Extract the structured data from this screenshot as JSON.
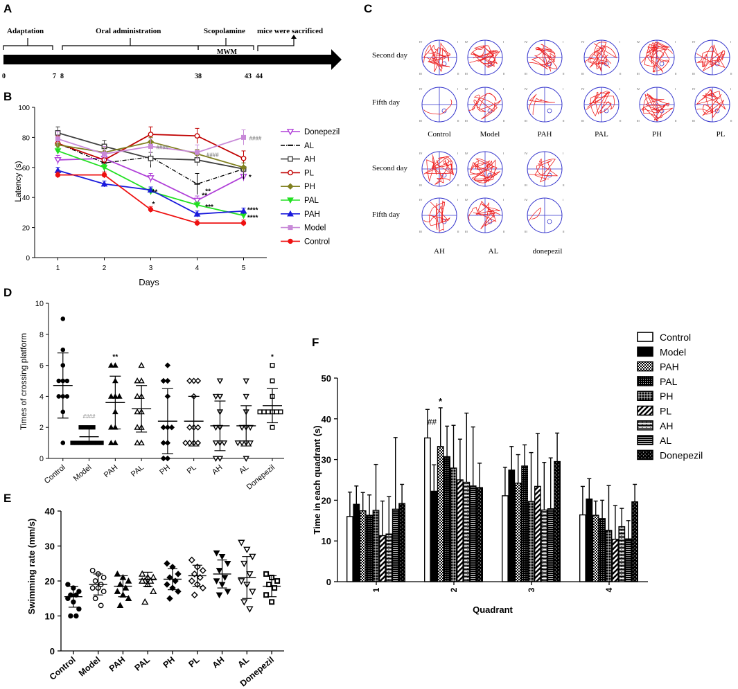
{
  "panel_letters": {
    "a": "A",
    "b": "B",
    "c": "C",
    "d": "D",
    "e": "E",
    "f": "F"
  },
  "colors": {
    "Donepezil": "#b040d8",
    "AL": "#000000",
    "AH": "#404040",
    "PL": "#c00000",
    "PH": "#808020",
    "PAL": "#22e022",
    "PAH": "#1a1adc",
    "Model": "#c88ad8",
    "Control": "#ee1111",
    "track_red": "#ee2222",
    "track_blue": "#3333cc"
  },
  "timeline": {
    "phases": [
      "Adaptation",
      "Oral administration",
      "Scopolamine",
      "MWM",
      "mice were sacrificed"
    ],
    "ticks": [
      "0",
      "7",
      "8",
      "38",
      "43",
      "44"
    ]
  },
  "chart_data": [
    {
      "panel": "B",
      "type": "line",
      "xlabel": "Days",
      "ylabel": "Latency (s)",
      "x": [
        1,
        2,
        3,
        4,
        5
      ],
      "xticks": [
        "1",
        "2",
        "3",
        "4",
        "5"
      ],
      "yticks": [
        "0",
        "20",
        "40",
        "60",
        "80",
        "100"
      ],
      "ylim": [
        0,
        100
      ],
      "legend_position": "right",
      "series": [
        {
          "name": "Donepezil",
          "values": [
            65,
            66,
            53,
            38,
            54
          ],
          "marker": "triangle-down-open"
        },
        {
          "name": "AL",
          "values": [
            76,
            63,
            67,
            49,
            59
          ],
          "marker": "dash"
        },
        {
          "name": "AH",
          "values": [
            83,
            74,
            66,
            65,
            59
          ],
          "marker": "square-open"
        },
        {
          "name": "PL",
          "values": [
            76,
            65,
            82,
            81,
            66
          ],
          "marker": "circle-open"
        },
        {
          "name": "PH",
          "values": [
            75,
            70,
            77,
            69,
            60
          ],
          "marker": "diamond"
        },
        {
          "name": "PAL",
          "values": [
            71,
            60,
            44,
            35,
            28
          ],
          "marker": "triangle-down"
        },
        {
          "name": "PAH",
          "values": [
            58,
            49,
            45,
            29,
            31
          ],
          "marker": "triangle-up"
        },
        {
          "name": "Model",
          "values": [
            79,
            69,
            74,
            70,
            80
          ],
          "marker": "square"
        },
        {
          "name": "Control",
          "values": [
            55,
            55,
            32,
            23,
            23
          ],
          "marker": "circle"
        }
      ],
      "annotations": [
        "**",
        "*",
        "####",
        "####",
        "**",
        "***",
        "**",
        "*",
        "****",
        "****",
        "####"
      ]
    },
    {
      "panel": "D",
      "type": "scatter",
      "ylabel": "Times of crossing platform",
      "categories": [
        "Control",
        "Model",
        "PAH",
        "PAL",
        "PH",
        "PL",
        "AH",
        "AL",
        "Donepezil"
      ],
      "yticks": [
        "0",
        "2",
        "4",
        "6",
        "8",
        "10"
      ],
      "ylim": [
        0,
        10
      ],
      "means": [
        4.7,
        1.4,
        3.6,
        3.2,
        2.4,
        2.4,
        2.1,
        2.1,
        3.4
      ],
      "sds": [
        2.1,
        0.5,
        1.7,
        1.5,
        2.1,
        1.6,
        1.6,
        1.3,
        1.1
      ],
      "points": [
        [
          9,
          7,
          6,
          5,
          5,
          5,
          4,
          4,
          4,
          3,
          1
        ],
        [
          2,
          2,
          2,
          2,
          1,
          1,
          1,
          1,
          1,
          1,
          1,
          1
        ],
        [
          6,
          6,
          5,
          4,
          4,
          4,
          3,
          2,
          2,
          1,
          1
        ],
        [
          6,
          5,
          5,
          4,
          4,
          3,
          3,
          2,
          2,
          1,
          1
        ],
        [
          6,
          5,
          5,
          4,
          2,
          2,
          2,
          1,
          1,
          0,
          0
        ],
        [
          5,
          5,
          5,
          4,
          2,
          2,
          2,
          1,
          1,
          1,
          1
        ],
        [
          5,
          4,
          4,
          3,
          2,
          2,
          1,
          1,
          1,
          0,
          0
        ],
        [
          5,
          4,
          3,
          2,
          2,
          2,
          1,
          1,
          1,
          1,
          0
        ],
        [
          6,
          5,
          4,
          3,
          3,
          3,
          3,
          3,
          3,
          2
        ]
      ],
      "annotations": [
        "####",
        "**",
        "*"
      ]
    },
    {
      "panel": "E",
      "type": "scatter",
      "ylabel": "Swimming rate (mm/s)",
      "categories": [
        "Control",
        "Model",
        "PAH",
        "PAL",
        "PH",
        "PL",
        "AH",
        "AL",
        "Donepezil"
      ],
      "yticks": [
        "0",
        "10",
        "20",
        "30",
        "40"
      ],
      "ylim": [
        0,
        40
      ],
      "means": [
        15.5,
        19,
        18.5,
        20.5,
        20.5,
        21.5,
        22,
        21,
        18.5
      ],
      "sds": [
        3,
        3,
        3,
        2,
        3,
        3,
        4,
        6,
        3
      ],
      "points": [
        [
          19,
          18,
          17,
          16,
          16,
          15,
          14,
          12,
          10,
          10
        ],
        [
          23,
          22,
          21,
          20,
          19,
          18,
          18,
          17,
          15,
          13
        ],
        [
          22,
          21,
          20,
          19,
          18,
          17,
          16,
          15,
          13
        ],
        [
          22,
          21,
          21,
          20,
          20,
          20,
          19,
          17,
          14
        ],
        [
          25,
          24,
          22,
          21,
          20,
          19,
          18,
          17,
          15
        ],
        [
          26,
          24,
          23,
          22,
          21,
          20,
          19,
          18,
          16
        ],
        [
          28,
          27,
          25,
          23,
          21,
          20,
          19,
          17,
          16
        ],
        [
          31,
          29,
          27,
          25,
          22,
          20,
          19,
          17,
          14,
          12
        ],
        [
          22,
          21,
          20,
          19,
          18,
          16,
          14
        ]
      ]
    },
    {
      "panel": "F",
      "type": "bar",
      "xlabel": "Quadrant",
      "ylabel": "Time in each quadrant (s)",
      "categories": [
        "1",
        "2",
        "3",
        "4"
      ],
      "yticks": [
        "0",
        "10",
        "20",
        "30",
        "40",
        "50"
      ],
      "ylim": [
        0,
        50
      ],
      "legend_position": "top-right",
      "series": [
        {
          "name": "Control",
          "values": [
            16,
            35.3,
            21.1,
            16.4
          ],
          "errors": [
            6,
            7,
            7,
            7
          ]
        },
        {
          "name": "Model",
          "values": [
            19,
            22.2,
            27.4,
            20.3
          ],
          "errors": [
            4.5,
            6.5,
            5.8,
            5
          ]
        },
        {
          "name": "PAH",
          "values": [
            17.4,
            33.2,
            24.2,
            16.3
          ],
          "errors": [
            4.5,
            9.5,
            7,
            3.5
          ]
        },
        {
          "name": "PAL",
          "values": [
            16.3,
            30.7,
            28.4,
            15.5
          ],
          "errors": [
            5,
            7.5,
            5.2,
            4.5
          ]
        },
        {
          "name": "PH",
          "values": [
            17.5,
            27.9,
            19.7,
            12.6
          ],
          "errors": [
            11.3,
            10.5,
            12,
            11
          ]
        },
        {
          "name": "PL",
          "values": [
            11.3,
            25,
            23.4,
            10.4
          ],
          "errors": [
            8.5,
            10,
            13,
            8.3
          ]
        },
        {
          "name": "AH",
          "values": [
            11.7,
            24.4,
            17.6,
            13.5
          ],
          "errors": [
            9.2,
            17,
            11.7,
            4.5
          ]
        },
        {
          "name": "AL",
          "values": [
            17.8,
            23.5,
            17.9,
            10.5
          ],
          "errors": [
            17.6,
            14.5,
            12.5,
            4.5
          ]
        },
        {
          "name": "Donepezil",
          "values": [
            19.2,
            23.1,
            29.5,
            19.6
          ],
          "errors": [
            4.7,
            6,
            7,
            4.3
          ]
        }
      ],
      "annotations": [
        "##",
        "*"
      ]
    }
  ],
  "mwm": {
    "row_labels": [
      "Second day",
      "Fifth day",
      "Second day",
      "Fifth day"
    ],
    "group_labels": [
      "Control",
      "Model",
      "PAH",
      "PAL",
      "PH",
      "PL",
      "AH",
      "AL",
      "donepezil"
    ],
    "quadrant_labels": [
      "IV",
      "I",
      "III",
      "II"
    ]
  }
}
